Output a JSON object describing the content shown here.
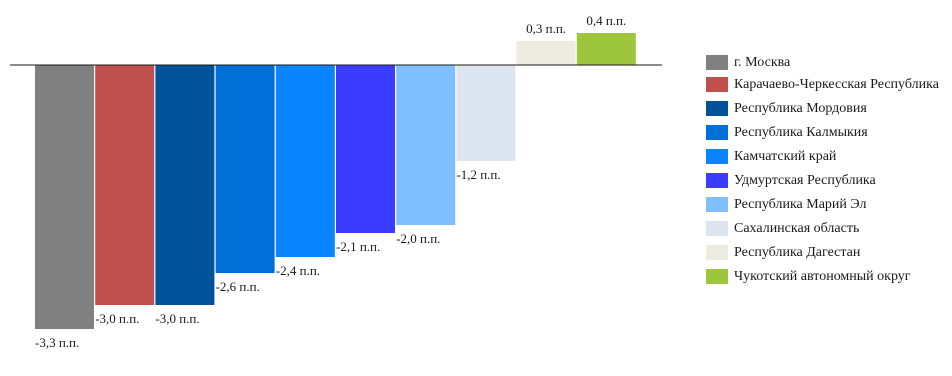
{
  "chart_data": {
    "type": "bar",
    "title": "",
    "xlabel": "",
    "ylabel": "",
    "unit": "п.п.",
    "ylim": [
      -3.3,
      0.4
    ],
    "legend_position": "right",
    "grid": false,
    "categories": [
      "г. Москва",
      "Карачаево-Черкесская Республика",
      "Республика Мордовия",
      "Республика Калмыкия",
      "Камчатский край",
      "Удмуртская Республика",
      "Республика Марий Эл",
      "Сахалинская область",
      "Республика Дагестан",
      "Чукотский автономный округ"
    ],
    "values": [
      -3.3,
      -3.0,
      -3.0,
      -2.6,
      -2.4,
      -2.1,
      -2.0,
      -1.2,
      0.3,
      0.4
    ],
    "value_labels": [
      "-3,3 п.п.",
      "-3,0 п.п.",
      "-3,0 п.п.",
      "-2,6 п.п.",
      "-2,4 п.п.",
      "-2,1 п.п.",
      "-2,0 п.п.",
      "-1,2 п.п.",
      "0,3 п.п.",
      "0,4 п.п."
    ],
    "colors": [
      "#808080",
      "#c0504d",
      "#00529b",
      "#0070d8",
      "#0a84ff",
      "#3c3cff",
      "#7fbfff",
      "#dde6f0",
      "#eeebe0",
      "#9dc63c"
    ]
  }
}
